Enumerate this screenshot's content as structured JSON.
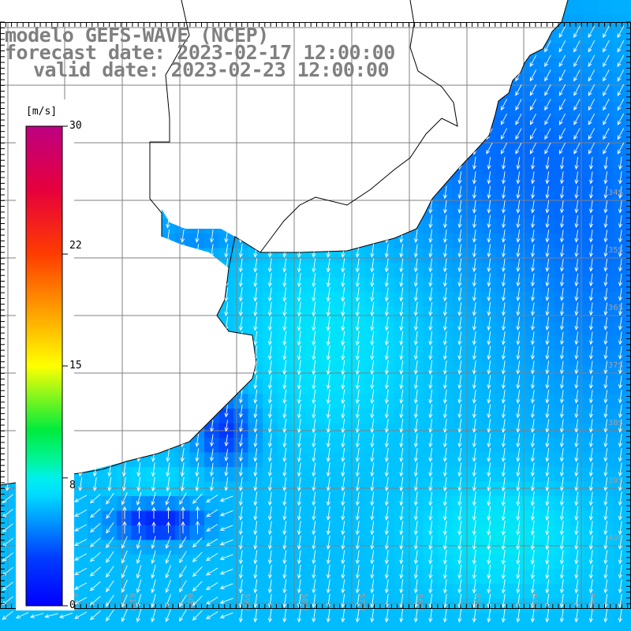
{
  "title": {
    "line1": "modelo GEFS-WAVE (NCEP)",
    "line2": "forecast date: 2023-02-17 12:00:00",
    "line3": "valid date: 2023-02-23 12:00:00"
  },
  "colorbar": {
    "unit": "[m/s]",
    "ticks": [
      {
        "label": "30",
        "value": 30
      },
      {
        "label": "22",
        "value": 22
      },
      {
        "label": "15",
        "value": 15
      },
      {
        "label": "8",
        "value": 8
      },
      {
        "label": "0",
        "value": 0
      }
    ],
    "min": 0,
    "max": 30
  },
  "graticule": {
    "lat_labels": [
      "34S",
      "35S",
      "36S",
      "37S",
      "38S",
      "39S",
      "40S"
    ],
    "lon_labels": [
      "62W",
      "61W",
      "60W",
      "59W",
      "58W",
      "57W",
      "56W",
      "55W",
      "54W",
      "53W"
    ]
  },
  "colors": {
    "ocean_low": "#0020e0",
    "ocean_mid": "#00e0ff",
    "ocean_high": "#00f090",
    "land": "#ffffff",
    "coast": "#000000",
    "grid": "#808080",
    "arrow": "#ffffff",
    "title": "#808080"
  }
}
